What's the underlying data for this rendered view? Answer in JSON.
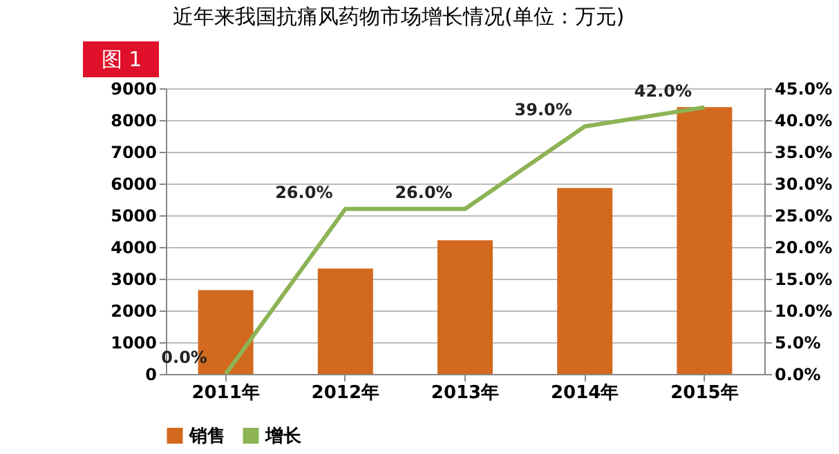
{
  "chart_data": {
    "type": "bar",
    "title": "近年来我国抗痛风药物市场增长情况(单位：万元)",
    "annotations": [
      "图 1"
    ],
    "categories": [
      "2011年",
      "2012年",
      "2013年",
      "2014年",
      "2015年"
    ],
    "series": [
      {
        "name": "销售",
        "color": "#d2691e",
        "values": [
          2640,
          3320,
          4210,
          5860,
          8410
        ]
      },
      {
        "name": "增长",
        "type": "line",
        "axis": "y2",
        "color": "#8db354",
        "values": [
          0,
          26,
          26,
          39,
          42
        ],
        "value_labels": [
          "0.0%",
          "26.0%",
          "26.0%",
          "39.0%",
          "42.0%"
        ]
      }
    ],
    "ylim": [
      0,
      9000
    ],
    "yticks": [
      0,
      1000,
      2000,
      3000,
      4000,
      5000,
      6000,
      7000,
      8000,
      9000
    ],
    "y2lim": [
      0,
      45
    ],
    "y2ticks": [
      {
        "value": 0,
        "label": "0.0%"
      },
      {
        "value": 5,
        "label": "5.0%"
      },
      {
        "value": 10,
        "label": "10.0%"
      },
      {
        "value": 15,
        "label": "15.0%"
      },
      {
        "value": 20,
        "label": "20.0%"
      },
      {
        "value": 25,
        "label": "25.0%"
      },
      {
        "value": 30,
        "label": "30.0%"
      },
      {
        "value": 35,
        "label": "35.0%"
      },
      {
        "value": 40,
        "label": "40.0%"
      },
      {
        "value": 45,
        "label": "45.0%"
      }
    ],
    "grid": "y",
    "legend": "bottom",
    "marker": "none",
    "line_style": "solid"
  }
}
